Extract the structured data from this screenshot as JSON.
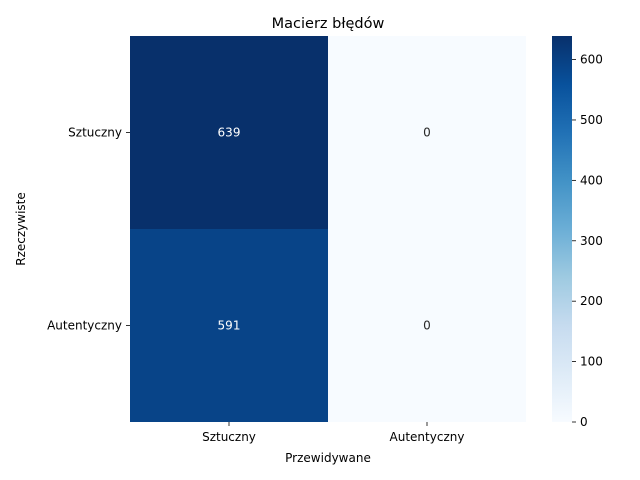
{
  "chart_data": {
    "type": "heatmap",
    "title": "Macierz błędów",
    "xlabel": "Przewidywane",
    "ylabel": "Rzeczywiste",
    "x_categories": [
      "Sztuczny",
      "Autentyczny"
    ],
    "y_categories": [
      "Sztuczny",
      "Autentyczny"
    ],
    "values": [
      [
        639,
        0
      ],
      [
        591,
        0
      ]
    ],
    "colormap": "Blues",
    "colorbar": {
      "range": [
        0,
        639
      ],
      "ticks": [
        0,
        100,
        200,
        300,
        400,
        500,
        600
      ]
    },
    "colors": {
      "max": "#08306b",
      "min": "#f7fbff"
    }
  }
}
